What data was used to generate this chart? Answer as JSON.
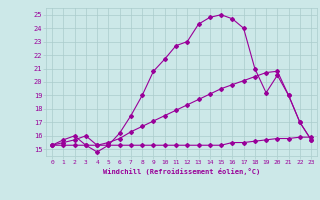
{
  "xlabel": "Windchill (Refroidissement éolien,°C)",
  "bg_color": "#cce8e8",
  "grid_color": "#aacccc",
  "line_color": "#990099",
  "line1_x": [
    0,
    1,
    2,
    3,
    4,
    5,
    6,
    7,
    8,
    9,
    10,
    11,
    12,
    13,
    14,
    15,
    16,
    17,
    18,
    19,
    20,
    21,
    22,
    23
  ],
  "line1_y": [
    15.3,
    15.7,
    16.0,
    15.3,
    14.8,
    15.3,
    16.2,
    17.5,
    19.0,
    20.8,
    21.7,
    22.7,
    23.0,
    24.3,
    24.8,
    25.0,
    24.7,
    24.0,
    21.0,
    19.2,
    20.5,
    19.0,
    17.0,
    15.7
  ],
  "line2_x": [
    0,
    1,
    2,
    3,
    4,
    5,
    6,
    7,
    8,
    9,
    10,
    11,
    12,
    13,
    14,
    15,
    16,
    17,
    18,
    19,
    20,
    21,
    22,
    23
  ],
  "line2_y": [
    15.3,
    15.5,
    15.7,
    16.0,
    15.3,
    15.5,
    15.8,
    16.3,
    16.7,
    17.1,
    17.5,
    17.9,
    18.3,
    18.7,
    19.1,
    19.5,
    19.8,
    20.1,
    20.4,
    20.7,
    20.8,
    19.0,
    17.0,
    15.7
  ],
  "line3_x": [
    0,
    1,
    2,
    3,
    4,
    5,
    6,
    7,
    8,
    9,
    10,
    11,
    12,
    13,
    14,
    15,
    16,
    17,
    18,
    19,
    20,
    21,
    22,
    23
  ],
  "line3_y": [
    15.3,
    15.3,
    15.3,
    15.3,
    15.3,
    15.3,
    15.3,
    15.3,
    15.3,
    15.3,
    15.3,
    15.3,
    15.3,
    15.3,
    15.3,
    15.3,
    15.5,
    15.5,
    15.6,
    15.7,
    15.8,
    15.8,
    15.9,
    15.9
  ],
  "xlim": [
    -0.5,
    23.5
  ],
  "ylim": [
    14.5,
    25.5
  ],
  "yticks": [
    15,
    16,
    17,
    18,
    19,
    20,
    21,
    22,
    23,
    24,
    25
  ],
  "xticks": [
    0,
    1,
    2,
    3,
    4,
    5,
    6,
    7,
    8,
    9,
    10,
    11,
    12,
    13,
    14,
    15,
    16,
    17,
    18,
    19,
    20,
    21,
    22,
    23
  ]
}
